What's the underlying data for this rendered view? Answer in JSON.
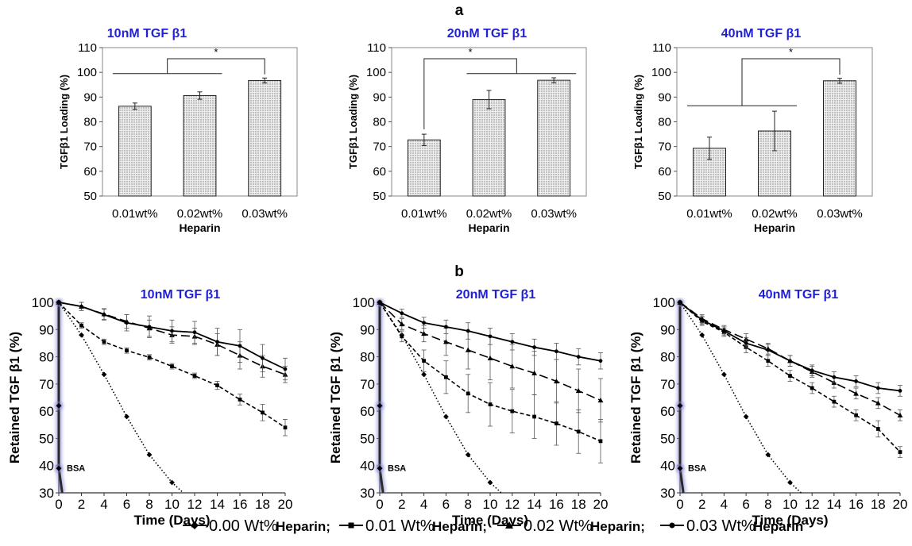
{
  "panel_labels": {
    "a": "a",
    "b": "b"
  },
  "legend": [
    {
      "marker": "diamond",
      "style": "solid",
      "text1": "0.00 Wt%",
      "text2": "Heparin;"
    },
    {
      "marker": "square",
      "style": "solid",
      "text1": "0.01 Wt%",
      "text2": "Heparin;"
    },
    {
      "marker": "triangle",
      "style": "solid",
      "text1": "0.02 Wt%",
      "text2": "Heparin;"
    },
    {
      "marker": "circle",
      "style": "solid",
      "text1": "0.03 Wt%",
      "text2": "Heparin"
    }
  ],
  "colors": {
    "title": "#1f1fd6",
    "bar_fill": "#c8c8c8",
    "bsa_line": "#2a2a2a",
    "bsa_glow": "#8a8ad8"
  },
  "chart_data": [
    {
      "type": "bar",
      "title": "10nM TGF β1",
      "categories": [
        "0.01wt%",
        "0.02wt%",
        "0.03wt%"
      ],
      "values": [
        86.3,
        90.6,
        96.7
      ],
      "errors": [
        1.3,
        1.5,
        1.0
      ],
      "xlabel": "Heparin",
      "ylabel": "TGFβ1 Loading (%)",
      "ylim": [
        50,
        110
      ],
      "yticks": [
        50,
        60,
        70,
        80,
        90,
        100,
        110
      ],
      "significance": "*",
      "sig_groups": "0.01wt% and 0.02wt% vs 0.03wt%"
    },
    {
      "type": "bar",
      "title": "20nM TGF β1",
      "categories": [
        "0.01wt%",
        "0.02wt%",
        "0.03wt%"
      ],
      "values": [
        72.7,
        89.0,
        96.8
      ],
      "errors": [
        2.3,
        3.7,
        1.0
      ],
      "xlabel": "Heparin",
      "ylabel": "TGFβ1 Loading (%)",
      "ylim": [
        50,
        110
      ],
      "yticks": [
        50,
        60,
        70,
        80,
        90,
        100,
        110
      ],
      "significance": "*",
      "sig_groups": "0.01wt% vs 0.02wt% and 0.03wt%"
    },
    {
      "type": "bar",
      "title": "40nM TGF β1",
      "categories": [
        "0.01wt%",
        "0.02wt%",
        "0.03wt%"
      ],
      "values": [
        69.3,
        76.3,
        96.6
      ],
      "errors": [
        4.5,
        8.0,
        1.0
      ],
      "xlabel": "Heparin",
      "ylabel": "TGFβ1 Loading (%)",
      "ylim": [
        50,
        110
      ],
      "yticks": [
        50,
        60,
        70,
        80,
        90,
        100,
        110
      ],
      "significance": "*",
      "sig_groups": "0.01wt% and 0.02wt% vs 0.03wt%"
    },
    {
      "type": "line",
      "title": "10nM TGF β1",
      "xlabel": "Time (Days)",
      "ylabel": "Retained TGF β1 (%)",
      "xlim": [
        0,
        20
      ],
      "ylim": [
        30,
        100
      ],
      "xticks": [
        0,
        2,
        4,
        6,
        8,
        10,
        12,
        14,
        16,
        18,
        20
      ],
      "yticks": [
        30,
        40,
        50,
        60,
        70,
        80,
        90,
        100
      ],
      "bsa": {
        "label": "BSA",
        "points": [
          [
            0,
            100
          ],
          [
            0,
            62
          ],
          [
            0,
            39
          ],
          [
            0.3,
            30
          ]
        ]
      },
      "series": [
        {
          "marker": "diamond",
          "dash": "dotted",
          "x": [
            0,
            2,
            4,
            6,
            8,
            10,
            11
          ],
          "y": [
            100,
            88,
            73.5,
            58,
            44,
            33.8,
            30
          ],
          "err": [
            0,
            0,
            0,
            0,
            0,
            0,
            0
          ]
        },
        {
          "marker": "square",
          "dash": "short",
          "x": [
            0,
            2,
            4,
            6,
            8,
            10,
            12,
            14,
            16,
            18,
            20
          ],
          "y": [
            100,
            91.5,
            85.5,
            82.3,
            79.8,
            76.5,
            73,
            69.5,
            64.3,
            59.5,
            54
          ],
          "err": [
            0,
            1,
            1,
            1,
            1,
            1,
            1,
            1.5,
            2,
            3,
            3
          ]
        },
        {
          "marker": "triangle",
          "dash": "long",
          "x": [
            0,
            2,
            4,
            6,
            8,
            10,
            12,
            14,
            16,
            18,
            20
          ],
          "y": [
            100,
            98.5,
            95.7,
            93,
            90.5,
            88,
            87.5,
            84.5,
            80.5,
            76.5,
            73.5
          ],
          "err": [
            0,
            1.5,
            2,
            2.5,
            3,
            3,
            3,
            4,
            5,
            4,
            3
          ]
        },
        {
          "marker": "circle",
          "dash": "solid",
          "x": [
            0,
            2,
            4,
            6,
            8,
            10,
            12,
            14,
            16,
            18,
            20
          ],
          "y": [
            100,
            98.5,
            95.5,
            92.5,
            91,
            89.5,
            89,
            85.5,
            84,
            79.5,
            75.5
          ],
          "err": [
            0,
            1.5,
            2,
            3,
            4,
            4,
            4,
            5,
            6,
            5,
            4
          ]
        }
      ]
    },
    {
      "type": "line",
      "title": "20nM TGF β1",
      "xlabel": "Time (Days)",
      "ylabel": "Retained  TGF β1 (%)",
      "xlim": [
        0,
        20
      ],
      "ylim": [
        30,
        100
      ],
      "xticks": [
        0,
        2,
        4,
        6,
        8,
        10,
        12,
        14,
        16,
        18,
        20
      ],
      "yticks": [
        30,
        40,
        50,
        60,
        70,
        80,
        90,
        100
      ],
      "bsa": {
        "label": "BSA",
        "points": [
          [
            0,
            100
          ],
          [
            0,
            62
          ],
          [
            0,
            39
          ],
          [
            0.3,
            30
          ]
        ]
      },
      "series": [
        {
          "marker": "diamond",
          "dash": "dotted",
          "x": [
            0,
            2,
            4,
            6,
            8,
            10,
            11
          ],
          "y": [
            100,
            88,
            73.5,
            58,
            44,
            33.8,
            30
          ],
          "err": [
            0,
            0,
            0,
            0,
            0,
            0,
            0
          ]
        },
        {
          "marker": "square",
          "dash": "short",
          "x": [
            0,
            2,
            4,
            6,
            8,
            10,
            12,
            14,
            16,
            18,
            20
          ],
          "y": [
            100,
            87.5,
            78.5,
            72.5,
            66.5,
            62.5,
            60,
            58,
            55.5,
            52.5,
            49
          ],
          "err": [
            0,
            2,
            4,
            6,
            7,
            8,
            8,
            8,
            8,
            8,
            8
          ]
        },
        {
          "marker": "triangle",
          "dash": "long",
          "x": [
            0,
            2,
            4,
            6,
            8,
            10,
            12,
            14,
            16,
            18,
            20
          ],
          "y": [
            100,
            92,
            88.5,
            85.5,
            82.5,
            79.5,
            76.5,
            74,
            71,
            67.5,
            64
          ],
          "err": [
            0,
            2,
            3,
            5,
            7,
            8,
            8,
            8,
            8,
            8,
            8
          ]
        },
        {
          "marker": "circle",
          "dash": "solid",
          "x": [
            0,
            2,
            4,
            6,
            8,
            10,
            12,
            14,
            16,
            18,
            20
          ],
          "y": [
            100,
            96,
            92.5,
            91,
            89.5,
            87.5,
            85.5,
            83.5,
            82,
            80,
            78.5
          ],
          "err": [
            0,
            1.5,
            2,
            2.5,
            3,
            3,
            3,
            3,
            3,
            3,
            3
          ]
        }
      ]
    },
    {
      "type": "line",
      "title": "40nM TGF β1",
      "xlabel": "Time (Days)",
      "ylabel": "Retained TGF β1 (%)",
      "xlim": [
        0,
        20
      ],
      "ylim": [
        30,
        100
      ],
      "xticks": [
        0,
        2,
        4,
        6,
        8,
        10,
        12,
        14,
        16,
        18,
        20
      ],
      "yticks": [
        30,
        40,
        50,
        60,
        70,
        80,
        90,
        100
      ],
      "bsa": {
        "label": "BSA",
        "points": [
          [
            0,
            100
          ],
          [
            0,
            62
          ],
          [
            0,
            39
          ],
          [
            0.3,
            30
          ]
        ]
      },
      "series": [
        {
          "marker": "diamond",
          "dash": "dotted",
          "x": [
            0,
            2,
            4,
            6,
            8,
            10,
            11
          ],
          "y": [
            100,
            88,
            73.5,
            58,
            44,
            33.8,
            30
          ],
          "err": [
            0,
            0,
            0,
            0,
            0,
            0,
            0
          ]
        },
        {
          "marker": "square",
          "dash": "short",
          "x": [
            0,
            2,
            4,
            6,
            8,
            10,
            12,
            14,
            16,
            18,
            20
          ],
          "y": [
            100,
            93,
            89,
            83.5,
            78.5,
            73,
            68.5,
            63.5,
            58.5,
            53.5,
            45
          ],
          "err": [
            0,
            1.5,
            1.5,
            2,
            2,
            2,
            2,
            2,
            2,
            3,
            2
          ]
        },
        {
          "marker": "triangle",
          "dash": "long",
          "x": [
            0,
            2,
            4,
            6,
            8,
            10,
            12,
            14,
            16,
            18,
            20
          ],
          "y": [
            100,
            94,
            90,
            86.5,
            83,
            78.5,
            74.5,
            70.5,
            66.5,
            63,
            58.5
          ],
          "err": [
            0,
            1.5,
            1.5,
            2,
            2,
            2,
            2,
            2,
            2,
            2,
            2
          ]
        },
        {
          "marker": "circle",
          "dash": "solid",
          "x": [
            0,
            2,
            4,
            6,
            8,
            10,
            12,
            14,
            16,
            18,
            20
          ],
          "y": [
            100,
            93.5,
            89.5,
            85,
            82.5,
            78.5,
            75,
            72.5,
            71,
            68.5,
            67.5
          ],
          "err": [
            0,
            1.5,
            1.5,
            2,
            2,
            2,
            2,
            2,
            2,
            2,
            2
          ]
        }
      ]
    }
  ]
}
